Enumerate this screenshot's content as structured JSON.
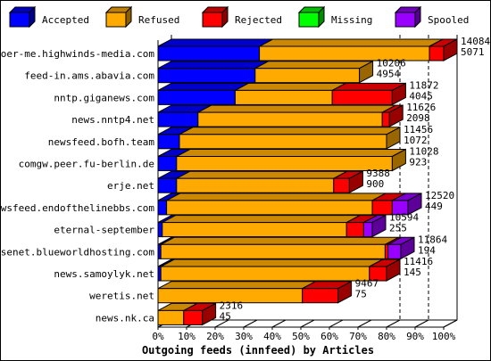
{
  "chart_data": {
    "type": "bar",
    "orientation": "horizontal",
    "stacked": true,
    "three_d": true,
    "title": "Outgoing feeds (innfeed) by Articles",
    "xlim": [
      0,
      100
    ],
    "x_tick_labels": [
      "0%",
      "10%",
      "20%",
      "30%",
      "40%",
      "50%",
      "60%",
      "70%",
      "80%",
      "90%",
      "100%"
    ],
    "legend_position": "top",
    "categories": [
      "voer-me.highwinds-media.com",
      "feed-in.ams.abavia.com",
      "nntp.giganews.com",
      "news.nntp4.net",
      "newsfeed.bofh.team",
      "comgw.peer.fu-berlin.de",
      "erje.net",
      "newsfeed.endofthelinebbs.com",
      "eternal-september",
      "usenet.blueworldhosting.com",
      "news.samoylyk.net",
      "weretis.net",
      "news.nk.ca"
    ],
    "series": [
      {
        "name": "Accepted",
        "color": "#0000ff",
        "values": [
          35.5,
          34.0,
          27.0,
          14.0,
          7.5,
          6.5,
          6.5,
          3.0,
          1.5,
          1.0,
          1.0,
          0,
          0
        ]
      },
      {
        "name": "Refused",
        "color": "#ffaa00",
        "values": [
          59.5,
          36.5,
          34.0,
          64.5,
          72.5,
          75.5,
          55.0,
          72.0,
          64.5,
          78.5,
          73.0,
          50.5,
          9.0
        ]
      },
      {
        "name": "Rejected",
        "color": "#ff0000",
        "values": [
          5.0,
          0,
          21.0,
          2.5,
          0,
          0,
          5.5,
          7.0,
          6.0,
          1.0,
          6.0,
          12.5,
          6.5
        ]
      },
      {
        "name": "Missing",
        "color": "#00ff00",
        "values": [
          0,
          0,
          0,
          0,
          0,
          0,
          0,
          0,
          0,
          0,
          0,
          0,
          0
        ]
      },
      {
        "name": "Spooled",
        "color": "#9900ff",
        "values": [
          0,
          0,
          0,
          0,
          0,
          0,
          0,
          5.5,
          3.0,
          4.5,
          0,
          0,
          0
        ]
      }
    ],
    "bar_labels": [
      [
        "14084",
        "5071"
      ],
      [
        "10206",
        "4954"
      ],
      [
        "11872",
        "4045"
      ],
      [
        "11626",
        "2098"
      ],
      [
        "11456",
        "1072"
      ],
      [
        "11028",
        "923"
      ],
      [
        "9388",
        "900"
      ],
      [
        "12520",
        "449"
      ],
      [
        "10594",
        "255"
      ],
      [
        "11864",
        "194"
      ],
      [
        "11416",
        "145"
      ],
      [
        "9467",
        "75"
      ],
      [
        "2316",
        "45"
      ]
    ],
    "reference_lines": [
      80,
      90
    ]
  }
}
